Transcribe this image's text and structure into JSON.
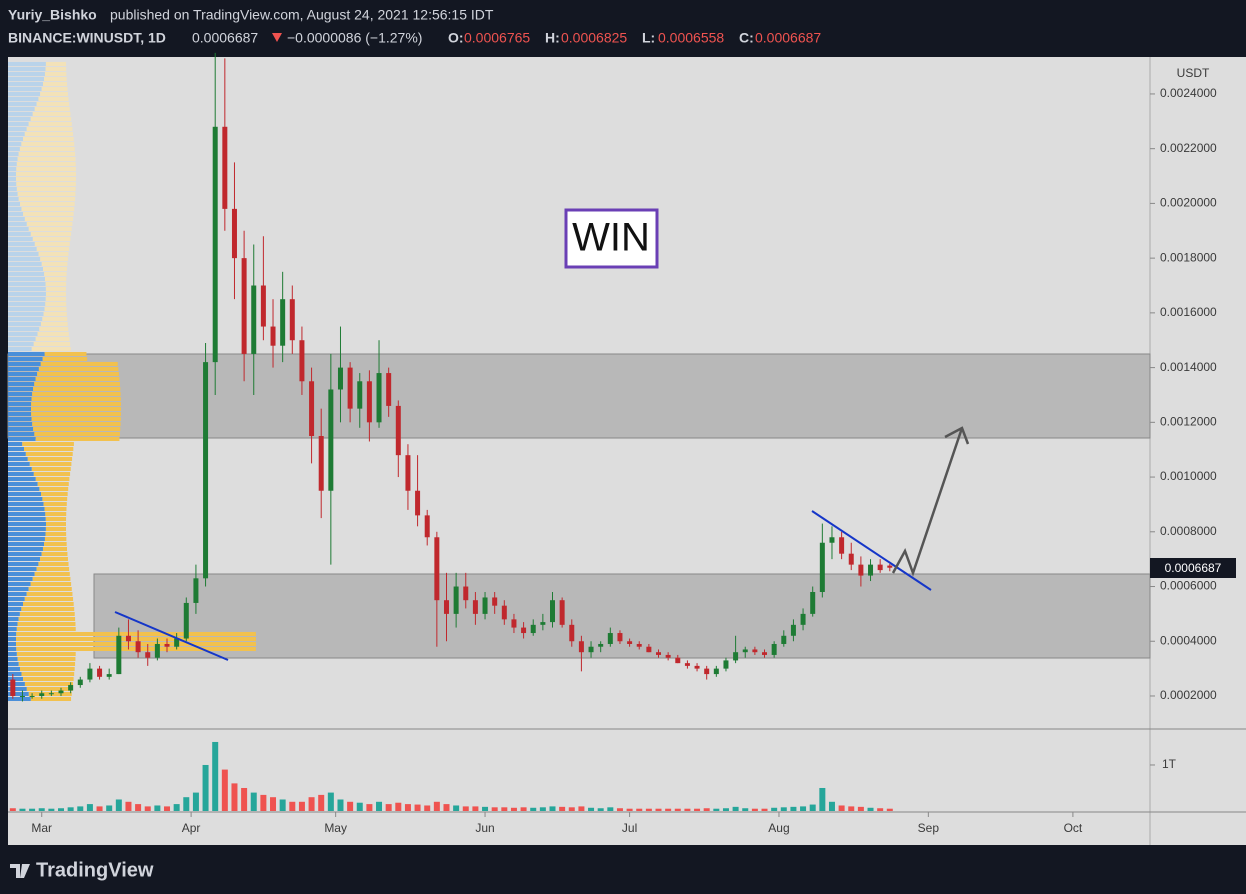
{
  "header": {
    "author": "Yuriy_Bishko",
    "published": "published on TradingView.com, August 24, 2021 12:56:15 IDT",
    "symbol": "BINANCE:WINUSDT, 1D",
    "change": "−0.0000086 (−1.27%)",
    "ohlc_labels": [
      "O:",
      "H:",
      "L:",
      "C:"
    ],
    "brand": "TradingView"
  },
  "chart_data": {
    "type": "candlestick",
    "annotation": "WIN",
    "unit": "USDT",
    "x": [
      54,
      56,
      58,
      60,
      62,
      64,
      66,
      68,
      70,
      72,
      74,
      76,
      78,
      80,
      82,
      84,
      86,
      88,
      90,
      92,
      94,
      96,
      98,
      100,
      102,
      104,
      106,
      108,
      110,
      112,
      114,
      116,
      118,
      120,
      122,
      124,
      126,
      128,
      130,
      132,
      134,
      136,
      138,
      140,
      142,
      144,
      146,
      148,
      150,
      152,
      154,
      156,
      158,
      160,
      162,
      164,
      166,
      168,
      170,
      172,
      174,
      176,
      178,
      180,
      182,
      184,
      186,
      188,
      190,
      192,
      194,
      196,
      198,
      200,
      202,
      204,
      206,
      208,
      210,
      212,
      214,
      216,
      218,
      220,
      222,
      224,
      226,
      228,
      230,
      232,
      234,
      236
    ],
    "candles": [
      [
        0.00026,
        0.00028,
        0.00019,
        0.0002
      ],
      [
        0.0002,
        0.00022,
        0.00018,
        0.0002
      ],
      [
        0.0002,
        0.00021,
        0.00019,
        0.0002
      ],
      [
        0.0002,
        0.00022,
        0.00019,
        0.00021
      ],
      [
        0.00021,
        0.00022,
        0.0002,
        0.00021
      ],
      [
        0.00021,
        0.00023,
        0.0002,
        0.00022
      ],
      [
        0.00022,
        0.00025,
        0.00021,
        0.00024
      ],
      [
        0.00024,
        0.00027,
        0.00023,
        0.00026
      ],
      [
        0.00026,
        0.00032,
        0.00025,
        0.0003
      ],
      [
        0.0003,
        0.00031,
        0.00026,
        0.00027
      ],
      [
        0.00027,
        0.0003,
        0.00026,
        0.00028
      ],
      [
        0.00028,
        0.00045,
        0.00028,
        0.00042
      ],
      [
        0.00042,
        0.00048,
        0.00037,
        0.0004
      ],
      [
        0.0004,
        0.00044,
        0.00034,
        0.00036
      ],
      [
        0.00036,
        0.00039,
        0.00031,
        0.00034
      ],
      [
        0.00034,
        0.00041,
        0.00033,
        0.00039
      ],
      [
        0.00039,
        0.00041,
        0.00036,
        0.00038
      ],
      [
        0.00038,
        0.00043,
        0.00037,
        0.00041
      ],
      [
        0.00041,
        0.00056,
        0.0004,
        0.00054
      ],
      [
        0.00054,
        0.00068,
        0.0005,
        0.00063
      ],
      [
        0.00063,
        0.00149,
        0.0006,
        0.00142
      ],
      [
        0.00142,
        0.00255,
        0.0013,
        0.00228
      ],
      [
        0.00228,
        0.00253,
        0.0019,
        0.00198
      ],
      [
        0.00198,
        0.00215,
        0.00165,
        0.0018
      ],
      [
        0.0018,
        0.0019,
        0.00135,
        0.00145
      ],
      [
        0.00145,
        0.00185,
        0.0013,
        0.0017
      ],
      [
        0.0017,
        0.00188,
        0.0015,
        0.00155
      ],
      [
        0.00155,
        0.00165,
        0.0014,
        0.00148
      ],
      [
        0.00148,
        0.00175,
        0.00142,
        0.00165
      ],
      [
        0.00165,
        0.0017,
        0.00145,
        0.0015
      ],
      [
        0.0015,
        0.00155,
        0.0013,
        0.00135
      ],
      [
        0.00135,
        0.0014,
        0.00105,
        0.00115
      ],
      [
        0.00115,
        0.00125,
        0.00085,
        0.00095
      ],
      [
        0.00095,
        0.00145,
        0.00068,
        0.00132
      ],
      [
        0.00132,
        0.00155,
        0.0012,
        0.0014
      ],
      [
        0.0014,
        0.00142,
        0.0012,
        0.00125
      ],
      [
        0.00125,
        0.00138,
        0.00118,
        0.00135
      ],
      [
        0.00135,
        0.00139,
        0.00113,
        0.0012
      ],
      [
        0.0012,
        0.0015,
        0.00118,
        0.00138
      ],
      [
        0.00138,
        0.0014,
        0.00122,
        0.00126
      ],
      [
        0.00126,
        0.00128,
        0.001,
        0.00108
      ],
      [
        0.00108,
        0.00112,
        0.00088,
        0.00095
      ],
      [
        0.00095,
        0.00108,
        0.00082,
        0.00086
      ],
      [
        0.00086,
        0.00088,
        0.00075,
        0.00078
      ],
      [
        0.00078,
        0.0008,
        0.00038,
        0.00055
      ],
      [
        0.00055,
        0.00065,
        0.0004,
        0.0005
      ],
      [
        0.0005,
        0.00065,
        0.00045,
        0.0006
      ],
      [
        0.0006,
        0.00065,
        0.00052,
        0.00055
      ],
      [
        0.00055,
        0.00058,
        0.00046,
        0.0005
      ],
      [
        0.0005,
        0.00058,
        0.00048,
        0.00056
      ],
      [
        0.00056,
        0.00058,
        0.0005,
        0.00053
      ],
      [
        0.00053,
        0.00055,
        0.00046,
        0.00048
      ],
      [
        0.00048,
        0.0005,
        0.00043,
        0.00045
      ],
      [
        0.00045,
        0.00047,
        0.00041,
        0.00043
      ],
      [
        0.00043,
        0.00048,
        0.00042,
        0.00046
      ],
      [
        0.00046,
        0.0005,
        0.00044,
        0.00047
      ],
      [
        0.00047,
        0.00058,
        0.00045,
        0.00055
      ],
      [
        0.00055,
        0.00056,
        0.00045,
        0.00046
      ],
      [
        0.00046,
        0.00048,
        0.00038,
        0.0004
      ],
      [
        0.0004,
        0.00042,
        0.00029,
        0.00036
      ],
      [
        0.00036,
        0.0004,
        0.00034,
        0.00038
      ],
      [
        0.00038,
        0.0004,
        0.00036,
        0.00039
      ],
      [
        0.00039,
        0.00045,
        0.00038,
        0.00043
      ],
      [
        0.00043,
        0.00044,
        0.00039,
        0.0004
      ],
      [
        0.0004,
        0.00041,
        0.00038,
        0.00039
      ],
      [
        0.00039,
        0.0004,
        0.00037,
        0.00038
      ],
      [
        0.00038,
        0.00039,
        0.00036,
        0.00036
      ],
      [
        0.00036,
        0.00037,
        0.00034,
        0.00035
      ],
      [
        0.00035,
        0.00036,
        0.00033,
        0.00034
      ],
      [
        0.00034,
        0.00035,
        0.00032,
        0.00032
      ],
      [
        0.00032,
        0.00033,
        0.0003,
        0.00031
      ],
      [
        0.00031,
        0.00032,
        0.00029,
        0.0003
      ],
      [
        0.0003,
        0.00031,
        0.00026,
        0.00028
      ],
      [
        0.00028,
        0.00031,
        0.00027,
        0.0003
      ],
      [
        0.0003,
        0.00034,
        0.00029,
        0.00033
      ],
      [
        0.00033,
        0.00042,
        0.00032,
        0.00036
      ],
      [
        0.00036,
        0.00038,
        0.00034,
        0.00037
      ],
      [
        0.00037,
        0.00038,
        0.00035,
        0.00036
      ],
      [
        0.00036,
        0.00037,
        0.00034,
        0.00035
      ],
      [
        0.00035,
        0.0004,
        0.00034,
        0.00039
      ],
      [
        0.00039,
        0.00044,
        0.00038,
        0.00042
      ],
      [
        0.00042,
        0.00048,
        0.0004,
        0.00046
      ],
      [
        0.00046,
        0.00052,
        0.00044,
        0.0005
      ],
      [
        0.0005,
        0.0006,
        0.00049,
        0.00058
      ],
      [
        0.00058,
        0.00083,
        0.00056,
        0.00076
      ],
      [
        0.00076,
        0.00082,
        0.0007,
        0.00078
      ],
      [
        0.00078,
        0.0008,
        0.0007,
        0.00072
      ],
      [
        0.00072,
        0.00076,
        0.00066,
        0.00068
      ],
      [
        0.00068,
        0.00071,
        0.0006,
        0.00064
      ],
      [
        0.00064,
        0.0007,
        0.00062,
        0.00068
      ],
      [
        0.00068,
        0.0007,
        0.00065,
        0.00066
      ],
      [
        0.0006765,
        0.0006825,
        0.0006558,
        0.0006687
      ]
    ],
    "volume": [
      60000000000.0,
      50000000000.0,
      50000000000.0,
      60000000000.0,
      50000000000.0,
      60000000000.0,
      80000000000.0,
      100000000000.0,
      150000000000.0,
      100000000000.0,
      120000000000.0,
      250000000000.0,
      200000000000.0,
      150000000000.0,
      100000000000.0,
      120000000000.0,
      100000000000.0,
      150000000000.0,
      300000000000.0,
      400000000000.0,
      1000000000000.0,
      1500000000000.0,
      900000000000.0,
      600000000000.0,
      500000000000.0,
      400000000000.0,
      350000000000.0,
      300000000000.0,
      250000000000.0,
      200000000000.0,
      200000000000.0,
      300000000000.0,
      350000000000.0,
      400000000000.0,
      250000000000.0,
      200000000000.0,
      180000000000.0,
      150000000000.0,
      200000000000.0,
      150000000000.0,
      180000000000.0,
      150000000000.0,
      140000000000.0,
      120000000000.0,
      200000000000.0,
      150000000000.0,
      120000000000.0,
      100000000000.0,
      100000000000.0,
      90000000000.0,
      80000000000.0,
      80000000000.0,
      70000000000.0,
      80000000000.0,
      70000000000.0,
      80000000000.0,
      100000000000.0,
      90000000000.0,
      80000000000.0,
      100000000000.0,
      70000000000.0,
      60000000000.0,
      80000000000.0,
      60000000000.0,
      50000000000.0,
      50000000000.0,
      50000000000.0,
      50000000000.0,
      50000000000.0,
      50000000000.0,
      50000000000.0,
      50000000000.0,
      60000000000.0,
      50000000000.0,
      60000000000.0,
      90000000000.0,
      60000000000.0,
      50000000000.0,
      50000000000.0,
      70000000000.0,
      80000000000.0,
      90000000000.0,
      100000000000.0,
      140000000000.0,
      500000000000.0,
      200000000000.0,
      120000000000.0,
      100000000000.0,
      90000000000.0,
      70000000000.0,
      60000000000.0,
      50000000000.0
    ],
    "up_color": "#1e7b34",
    "down_color": "#c0282d",
    "vol_up_color": "#26a69a",
    "vol_down_color": "#ef5350",
    "xlim": [
      53,
      290
    ],
    "xticks": [
      {
        "value": 60,
        "label": "Mar"
      },
      {
        "value": 91,
        "label": "Apr"
      },
      {
        "value": 121,
        "label": "May"
      },
      {
        "value": 152,
        "label": "Jun"
      },
      {
        "value": 182,
        "label": "Jul"
      },
      {
        "value": 213,
        "label": "Aug"
      },
      {
        "value": 244,
        "label": "Sep"
      },
      {
        "value": 274,
        "label": "Oct"
      }
    ],
    "ylim": [
      8.3e-05,
      0.002535
    ],
    "yticks": [
      {
        "value": 0.0002,
        "label": "0.0002000"
      },
      {
        "value": 0.0004,
        "label": "0.0004000"
      },
      {
        "value": 0.0006,
        "label": "0.0006000"
      },
      {
        "value": 0.0008,
        "label": "0.0008000"
      },
      {
        "value": 0.001,
        "label": "0.0010000"
      },
      {
        "value": 0.0012,
        "label": "0.0012000"
      },
      {
        "value": 0.0014,
        "label": "0.0014000"
      },
      {
        "value": 0.0016,
        "label": "0.0016000"
      },
      {
        "value": 0.0018,
        "label": "0.0018000"
      },
      {
        "value": 0.002,
        "label": "0.0020000"
      },
      {
        "value": 0.0022,
        "label": "0.0022000"
      },
      {
        "value": 0.0024,
        "label": "0.0024000"
      }
    ],
    "y2lim": [
      0,
      1760000000000
    ],
    "y2ticks": [
      {
        "value": 1000000000000,
        "label": "1T"
      }
    ]
  }
}
